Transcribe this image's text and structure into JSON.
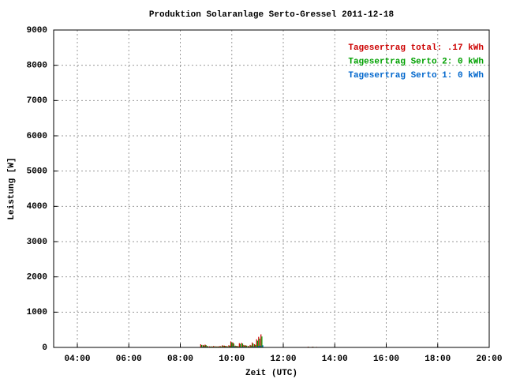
{
  "chart_data": {
    "type": "bar",
    "title": "Produktion Solaranlage Serto-Gressel 2011-12-18",
    "x_label": "Zeit (UTC)",
    "y_label": "Leistung [W]",
    "x": [
      8.83,
      8.92,
      9.0,
      9.08,
      9.17,
      9.25,
      9.33,
      9.42,
      9.5,
      9.58,
      9.67,
      9.75,
      9.83,
      9.92,
      10.0,
      10.08,
      10.17,
      10.25,
      10.33,
      10.42,
      10.5,
      10.58,
      10.67,
      10.75,
      10.83,
      10.92,
      11.0,
      11.08,
      11.17,
      13.0,
      13.17,
      13.33
    ],
    "series": [
      {
        "name": "Tagesertrag total: .17 kWh",
        "color": "#cc0000",
        "values": [
          90,
          70,
          80,
          40,
          30,
          30,
          40,
          30,
          30,
          40,
          60,
          50,
          40,
          60,
          170,
          140,
          50,
          40,
          120,
          130,
          70,
          60,
          40,
          70,
          140,
          90,
          230,
          300,
          370,
          20,
          20,
          15
        ]
      },
      {
        "name": "Tagesertrag Serto 2: 0 kWh",
        "color": "#00a000",
        "values": [
          70,
          55,
          65,
          30,
          25,
          25,
          30,
          25,
          25,
          30,
          50,
          40,
          30,
          50,
          140,
          110,
          40,
          30,
          100,
          110,
          55,
          50,
          30,
          55,
          110,
          70,
          190,
          250,
          310,
          15,
          15,
          10
        ]
      },
      {
        "name": "Tagesertrag Serto 1: 0 kWh",
        "color": "#0066cc",
        "values": [
          20,
          15,
          15,
          10,
          5,
          5,
          10,
          5,
          5,
          10,
          10,
          10,
          10,
          10,
          30,
          30,
          10,
          10,
          20,
          20,
          15,
          10,
          10,
          15,
          30,
          20,
          40,
          50,
          60,
          5,
          5,
          5
        ]
      }
    ],
    "xlim": [
      3.08,
      20
    ],
    "xticks": [
      {
        "value": 4,
        "label": "04:00"
      },
      {
        "value": 6,
        "label": "06:00"
      },
      {
        "value": 8,
        "label": "08:00"
      },
      {
        "value": 10,
        "label": "10:00"
      },
      {
        "value": 12,
        "label": "12:00"
      },
      {
        "value": 14,
        "label": "14:00"
      },
      {
        "value": 16,
        "label": "16:00"
      },
      {
        "value": 18,
        "label": "18:00"
      },
      {
        "value": 20,
        "label": "20:00"
      }
    ],
    "ylim": [
      0,
      9000
    ],
    "yticks": [
      0,
      1000,
      2000,
      3000,
      4000,
      5000,
      6000,
      7000,
      8000,
      9000
    ],
    "grid": true
  }
}
